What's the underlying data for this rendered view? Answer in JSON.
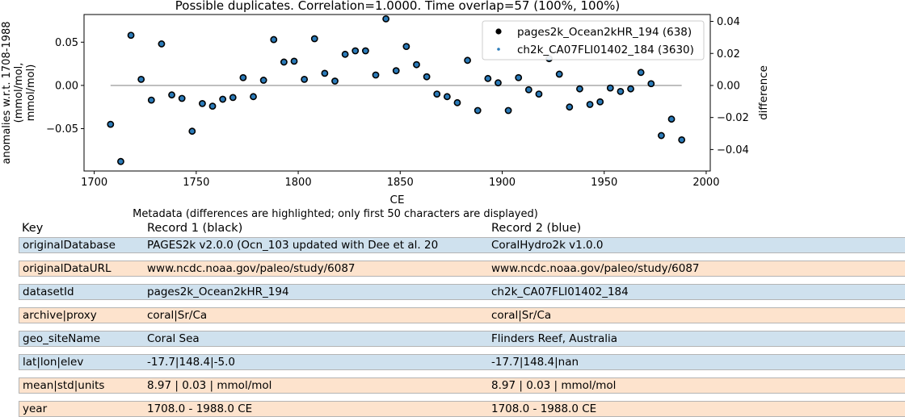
{
  "chart_data": {
    "type": "scatter",
    "title": "Possible duplicates. Correlation=1.0000. Time overlap=57 (100%, 100%)",
    "xlabel": "CE",
    "ylabel": "anomalies w.r.t. 1708-1988\n(mmol/mol,\nmmol/mol)",
    "y2label": "difference",
    "xlim": [
      1695,
      2002
    ],
    "ylim": [
      -0.099,
      0.082
    ],
    "y2lim": [
      -0.0534,
      0.0443
    ],
    "xticks": [
      1700,
      1750,
      1800,
      1850,
      1900,
      1950,
      2000
    ],
    "yticks": [
      -0.05,
      0.0,
      0.05
    ],
    "ytick_labels": [
      "−0.05",
      "0.00",
      "0.05"
    ],
    "y2ticks": [
      -0.04,
      -0.02,
      0.0,
      0.02,
      0.04
    ],
    "y2tick_labels": [
      "−0.04",
      "−0.02",
      "0.00",
      "0.02",
      "0.04"
    ],
    "legend_position": "top-right",
    "series": [
      {
        "name": "pages2k_Ocean2kHR_194 (638)",
        "color": "#000000",
        "marker": "large-black-circle",
        "x": [
          1708,
          1713,
          1718,
          1723,
          1728,
          1733,
          1738,
          1743,
          1748,
          1753,
          1758,
          1763,
          1768,
          1773,
          1778,
          1783,
          1788,
          1793,
          1798,
          1803,
          1808,
          1813,
          1818,
          1823,
          1828,
          1833,
          1838,
          1843,
          1848,
          1853,
          1858,
          1863,
          1868,
          1873,
          1878,
          1883,
          1888,
          1893,
          1898,
          1903,
          1908,
          1913,
          1918,
          1923,
          1928,
          1933,
          1938,
          1943,
          1948,
          1953,
          1958,
          1963,
          1968,
          1973,
          1978,
          1983,
          1988
        ],
        "values": [
          -0.045,
          -0.088,
          0.058,
          0.007,
          -0.017,
          0.048,
          -0.011,
          -0.015,
          -0.053,
          -0.021,
          -0.024,
          -0.016,
          -0.014,
          0.009,
          -0.013,
          0.006,
          0.053,
          0.027,
          0.028,
          0.007,
          0.054,
          0.014,
          0.005,
          0.036,
          0.04,
          0.04,
          0.012,
          0.077,
          0.017,
          0.045,
          0.024,
          0.01,
          -0.01,
          -0.013,
          -0.02,
          0.029,
          -0.029,
          0.008,
          0.003,
          -0.029,
          0.009,
          -0.005,
          -0.01,
          0.031,
          0.013,
          -0.025,
          -0.004,
          -0.022,
          -0.019,
          -0.003,
          -0.007,
          -0.004,
          0.015,
          0.002,
          -0.058,
          -0.039,
          -0.063
        ]
      },
      {
        "name": "ch2k_CA07FLI01402_184 (3630)",
        "color": "#2b7bb9",
        "marker": "small-blue-dot",
        "x": [
          1708,
          1713,
          1718,
          1723,
          1728,
          1733,
          1738,
          1743,
          1748,
          1753,
          1758,
          1763,
          1768,
          1773,
          1778,
          1783,
          1788,
          1793,
          1798,
          1803,
          1808,
          1813,
          1818,
          1823,
          1828,
          1833,
          1838,
          1843,
          1848,
          1853,
          1858,
          1863,
          1868,
          1873,
          1878,
          1883,
          1888,
          1893,
          1898,
          1903,
          1908,
          1913,
          1918,
          1923,
          1928,
          1933,
          1938,
          1943,
          1948,
          1953,
          1958,
          1963,
          1968,
          1973,
          1978,
          1983,
          1988
        ],
        "values": [
          -0.045,
          -0.088,
          0.058,
          0.007,
          -0.017,
          0.048,
          -0.011,
          -0.015,
          -0.053,
          -0.021,
          -0.024,
          -0.016,
          -0.014,
          0.009,
          -0.013,
          0.006,
          0.053,
          0.027,
          0.028,
          0.007,
          0.054,
          0.014,
          0.005,
          0.036,
          0.04,
          0.04,
          0.012,
          0.077,
          0.017,
          0.045,
          0.024,
          0.01,
          -0.01,
          -0.013,
          -0.02,
          0.029,
          -0.029,
          0.008,
          0.003,
          -0.029,
          0.009,
          -0.005,
          -0.01,
          0.031,
          0.013,
          -0.025,
          -0.004,
          -0.022,
          -0.019,
          -0.003,
          -0.007,
          -0.004,
          0.015,
          0.002,
          -0.058,
          -0.039,
          -0.063
        ]
      }
    ],
    "difference": {
      "x_range": [
        1708,
        1988
      ],
      "value": 0.0,
      "color": "#b0b0b0"
    }
  },
  "metadata": {
    "title": "Metadata (differences are highlighted; only first 50 characters are displayed)",
    "headers": [
      "Key",
      "Record 1 (black)",
      "Record 2 (blue)"
    ],
    "rows": [
      {
        "key": "originalDatabase",
        "r1": "PAGES2k v2.0.0 (Ocn_103 updated with Dee et al. 20",
        "r2": "CoralHydro2k v1.0.0",
        "highlight": "blue"
      },
      {
        "key": "originalDataURL",
        "r1": "www.ncdc.noaa.gov/paleo/study/6087",
        "r2": "www.ncdc.noaa.gov/paleo/study/6087",
        "highlight": "orange"
      },
      {
        "key": "datasetId",
        "r1": "pages2k_Ocean2kHR_194",
        "r2": "ch2k_CA07FLI01402_184",
        "highlight": "blue"
      },
      {
        "key": "archive|proxy",
        "r1": "coral|Sr/Ca",
        "r2": "coral|Sr/Ca",
        "highlight": "orange"
      },
      {
        "key": "geo_siteName",
        "r1": "Coral Sea",
        "r2": "Flinders Reef, Australia",
        "highlight": "blue"
      },
      {
        "key": "lat|lon|elev",
        "r1": "-17.7|148.4|-5.0",
        "r2": "-17.7|148.4|nan",
        "highlight": "blue"
      },
      {
        "key": "mean|std|units",
        "r1": "8.97 | 0.03 | mmol/mol",
        "r2": "8.97 | 0.03 | mmol/mol",
        "highlight": "orange"
      },
      {
        "key": "year",
        "r1": "1708.0 - 1988.0 CE",
        "r2": "1708.0 - 1988.0 CE",
        "highlight": "orange"
      }
    ]
  }
}
